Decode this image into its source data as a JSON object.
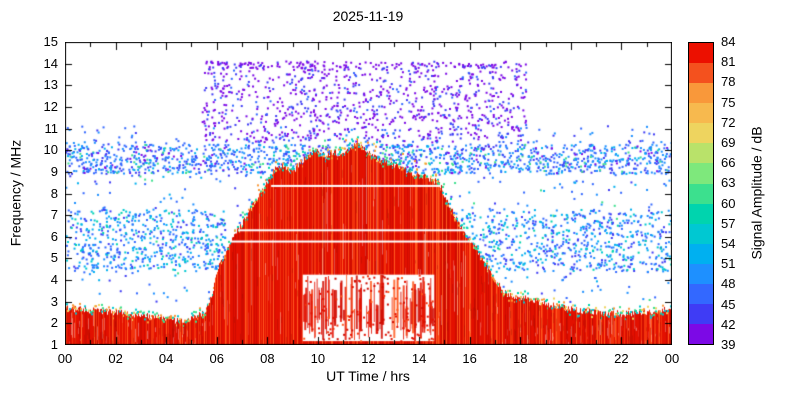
{
  "title": "2025-11-19",
  "chart_data": {
    "type": "heatmap",
    "title": "2025-11-19",
    "xlabel": "UT Time / hrs",
    "ylabel": "Frequency / MHz",
    "colorbar_label": "Signal Amplitude / dB",
    "xlim": [
      0,
      24
    ],
    "ylim": [
      1,
      15
    ],
    "grid": false,
    "x_ticks": [
      "00",
      "02",
      "04",
      "06",
      "08",
      "10",
      "12",
      "14",
      "16",
      "18",
      "20",
      "22",
      "00"
    ],
    "x_tick_hours": [
      0,
      2,
      4,
      6,
      8,
      10,
      12,
      14,
      16,
      18,
      20,
      22,
      24
    ],
    "y_ticks": [
      1,
      2,
      3,
      4,
      5,
      6,
      7,
      8,
      9,
      10,
      11,
      12,
      13,
      14,
      15
    ],
    "colorbar_ticks": [
      39,
      42,
      45,
      48,
      51,
      54,
      57,
      60,
      63,
      66,
      69,
      72,
      75,
      78,
      81,
      84
    ],
    "colorbar_colors": [
      "#7c09e6",
      "#3f3cf5",
      "#3368ff",
      "#1e90ff",
      "#00b0f0",
      "#00c8d2",
      "#00d4ae",
      "#3ce08e",
      "#7ee87c",
      "#b9e26a",
      "#eed45f",
      "#f7b94e",
      "#f9983a",
      "#f4511e",
      "#ec1000"
    ],
    "envelope": {
      "t": [
        0,
        1,
        2,
        3,
        4,
        4.5,
        5,
        5.5,
        5.8,
        6,
        6.5,
        7,
        7.5,
        8,
        8.3,
        8.6,
        9,
        9.3,
        9.6,
        10,
        10.3,
        10.6,
        11,
        11.3,
        11.6,
        12,
        12.4,
        12.8,
        13.2,
        13.6,
        14,
        14.4,
        14.8,
        15,
        15.4,
        15.8,
        16.2,
        16.6,
        17,
        17.4,
        17.8,
        18.2,
        19,
        20,
        21,
        22,
        23,
        24
      ],
      "f": [
        2.7,
        2.6,
        2.5,
        2.4,
        2.2,
        2.1,
        2.2,
        2.5,
        3.2,
        4.4,
        5.6,
        6.6,
        7.6,
        8.6,
        9.1,
        9.3,
        9.0,
        9.4,
        9.7,
        10.0,
        9.7,
        9.9,
        9.8,
        10.2,
        10.4,
        9.9,
        9.6,
        9.4,
        9.2,
        9.0,
        8.9,
        8.7,
        8.5,
        7.9,
        7.0,
        6.2,
        5.6,
        4.8,
        4.0,
        3.4,
        3.25,
        3.2,
        2.9,
        2.65,
        2.5,
        2.45,
        2.5,
        2.7
      ]
    },
    "fill_colors": [
      [
        "#e31000",
        5
      ],
      [
        "#f2330c",
        2
      ],
      [
        "#cf0b00",
        2
      ],
      [
        "#ff5a1f",
        1
      ]
    ],
    "fringe_colors": [
      [
        "#eed45f",
        2
      ],
      [
        "#3ce08e",
        2
      ],
      [
        "#00c8d2",
        2
      ],
      [
        "#f9983a",
        2
      ],
      [
        "#00d4ae",
        1
      ]
    ],
    "gap": {
      "t0": 9.4,
      "t1": 14.6,
      "f0": 1.18,
      "f1": 4.25,
      "streaks": 95,
      "dots": 160
    },
    "white_lines": [
      {
        "f": 8.35,
        "t0": 8.15,
        "t1": 14.85
      },
      {
        "f": 6.3,
        "t0": 6.85,
        "t1": 16.2
      },
      {
        "f": 5.78,
        "t0": 6.6,
        "t1": 16.55
      }
    ],
    "speckle_layers": [
      {
        "name": "background-noise",
        "t0": 0,
        "t1": 24,
        "f0": 3.0,
        "f1": 9.0,
        "n": 420,
        "size": 2,
        "colors": [
          [
            "#3368ff",
            4
          ],
          [
            "#1e90ff",
            3
          ],
          [
            "#00b0f0",
            2
          ],
          [
            "#3f3cf5",
            2
          ],
          [
            "#3ce08e",
            1
          ]
        ]
      },
      {
        "name": "night-mid-band-am",
        "t0": 0,
        "t1": 6.3,
        "f0": 4.4,
        "f1": 7.3,
        "n": 520,
        "size": 2,
        "colors": [
          [
            "#3368ff",
            4
          ],
          [
            "#1e90ff",
            3
          ],
          [
            "#00b0f0",
            3
          ],
          [
            "#00c8d2",
            2
          ],
          [
            "#00d4ae",
            1
          ],
          [
            "#3f3cf5",
            2
          ]
        ]
      },
      {
        "name": "night-mid-band-pm",
        "t0": 15.2,
        "t1": 24,
        "f0": 4.4,
        "f1": 7.3,
        "n": 660,
        "size": 2,
        "colors": [
          [
            "#3368ff",
            4
          ],
          [
            "#1e90ff",
            3
          ],
          [
            "#00b0f0",
            3
          ],
          [
            "#00c8d2",
            2
          ],
          [
            "#00d4ae",
            1
          ],
          [
            "#3f3cf5",
            2
          ]
        ]
      },
      {
        "name": "e-region-blue-band",
        "t0": 0,
        "t1": 24,
        "f0": 8.95,
        "f1": 10.3,
        "n": 1500,
        "size": 2,
        "colors": [
          [
            "#3368ff",
            4
          ],
          [
            "#3f3cf5",
            2
          ],
          [
            "#1e90ff",
            3
          ],
          [
            "#00b0f0",
            2
          ],
          [
            "#3ce08e",
            1
          ],
          [
            "#7c09e6",
            1
          ]
        ]
      },
      {
        "name": "sparse-above-blue-band",
        "t0": 0,
        "t1": 24,
        "f0": 10.3,
        "f1": 11.2,
        "n": 120,
        "size": 2,
        "colors": [
          [
            "#3368ff",
            3
          ],
          [
            "#1e90ff",
            2
          ],
          [
            "#3f3cf5",
            2
          ]
        ]
      },
      {
        "name": "daytime-purple-field",
        "t0": 5.4,
        "t1": 18.2,
        "f0": 10.4,
        "f1": 14.15,
        "n": 950,
        "size": 2,
        "colors": [
          [
            "#7c09e6",
            6
          ],
          [
            "#3f3cf5",
            2
          ],
          [
            "#3368ff",
            1
          ]
        ]
      },
      {
        "name": "purple-top-row",
        "t0": 5.5,
        "t1": 17.5,
        "f0": 13.85,
        "f1": 14.1,
        "n": 90,
        "size": 2,
        "colors": [
          [
            "#7c09e6",
            5
          ],
          [
            "#3f3cf5",
            1
          ]
        ]
      }
    ]
  }
}
